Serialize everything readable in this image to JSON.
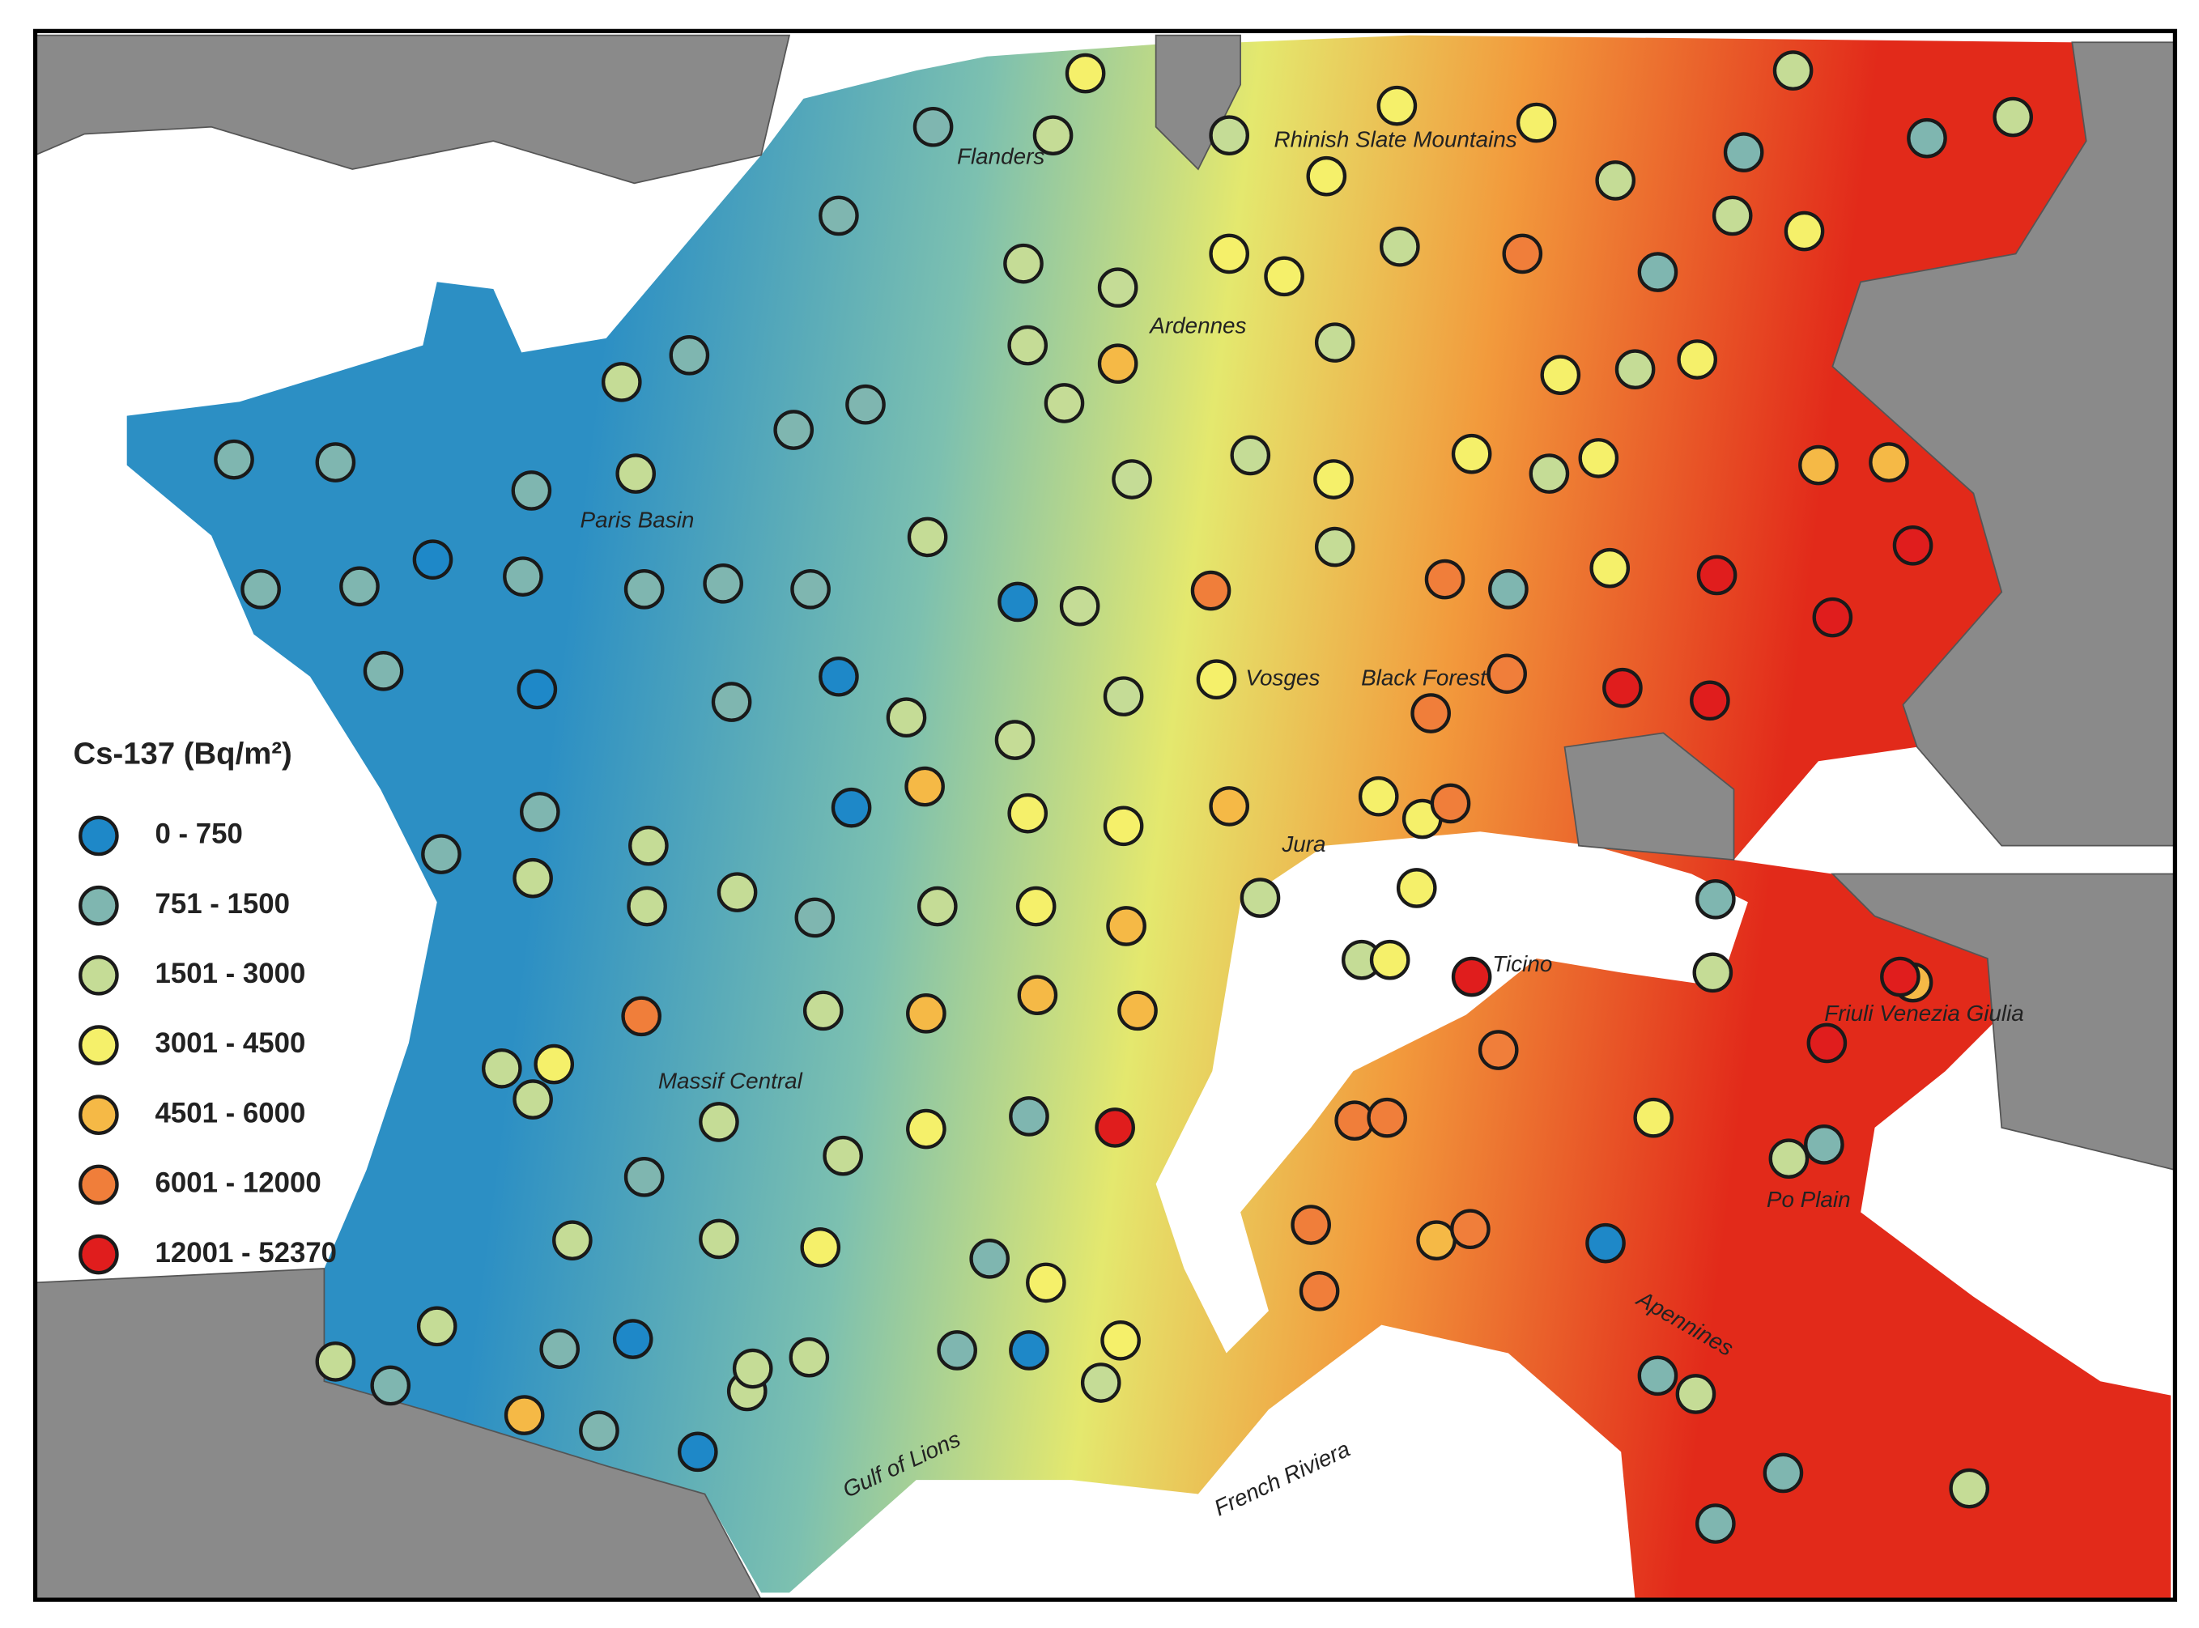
{
  "legend": {
    "title": "Cs-137 (Bq/m²)",
    "items": [
      {
        "label": "0 - 750",
        "color": "#1e88c8"
      },
      {
        "label": "751 - 1500",
        "color": "#7fb6b0"
      },
      {
        "label": "1501 - 3000",
        "color": "#c5dc96"
      },
      {
        "label": "3001 - 4500",
        "color": "#f5f06a"
      },
      {
        "label": "4501 - 6000",
        "color": "#f5b946"
      },
      {
        "label": "6001 - 12000",
        "color": "#f07e3a"
      },
      {
        "label": "12001 - 52370",
        "color": "#e01d1d"
      }
    ]
  },
  "labels": [
    "Flanders",
    "Rhinish Slate Mountains",
    "Ardennes",
    "Paris Basin",
    "Vosges",
    "Black Forest",
    "Jura",
    "Ticino",
    "Friuli Venezia Giulia",
    "Massif Central",
    "Po Plain",
    "Apennines",
    "Gulf of Lions",
    "French Riviera"
  ]
}
